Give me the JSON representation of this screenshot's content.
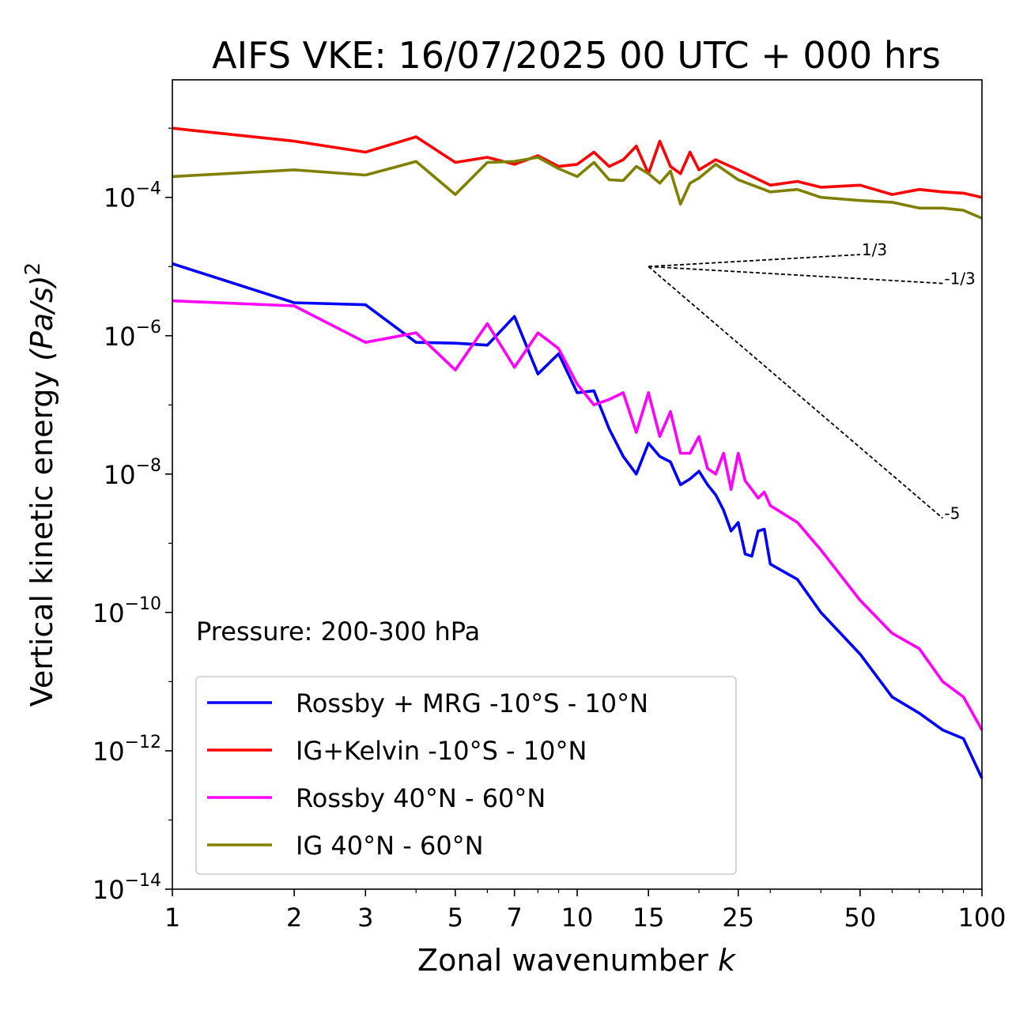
{
  "chart_data": {
    "type": "line",
    "title": "AIFS VKE: 16/07/2025 00 UTC + 000 hrs",
    "xlabel": "Zonal wavenumber",
    "xlabel_var": "k",
    "ylabel": "Vertical kinetic energy",
    "ylabel_unit": "(Pa/s)",
    "ylabel_exp": "2",
    "xscale": "log",
    "yscale": "log",
    "xlim": [
      1,
      100
    ],
    "ylim": [
      1e-14,
      0.005
    ],
    "xticks": [
      1,
      2,
      3,
      5,
      7,
      10,
      15,
      25,
      50,
      100
    ],
    "xtick_labels": [
      "1",
      "2",
      "3",
      "5",
      "7",
      "10",
      "15",
      "25",
      "50",
      "100"
    ],
    "yticks": [
      {
        "value": 0.0001,
        "base": "10",
        "exp": "−4"
      },
      {
        "value": 1e-06,
        "base": "10",
        "exp": "−6"
      },
      {
        "value": 1e-08,
        "base": "10",
        "exp": "−8"
      },
      {
        "value": 1e-10,
        "base": "10",
        "exp": "−10"
      },
      {
        "value": 1e-12,
        "base": "10",
        "exp": "−12"
      },
      {
        "value": 1e-14,
        "base": "10",
        "exp": "−14"
      }
    ],
    "annotation": "Pressure: 200-300 hPa",
    "legend_position": "lower-left",
    "grid": false,
    "reference_slopes": [
      {
        "label": "1/3",
        "x": [
          15,
          50
        ],
        "y": [
          1e-05,
          1.49e-05
        ]
      },
      {
        "label": "-1/3",
        "x": [
          15,
          80
        ],
        "y": [
          1e-05,
          5.7e-06
        ]
      },
      {
        "label": "-5",
        "x": [
          15,
          80
        ],
        "y": [
          1e-05,
          2.3e-09
        ]
      }
    ],
    "series": [
      {
        "name": "Rossby + MRG -10°S - 10°N",
        "color": "#0000ff",
        "x": [
          1,
          2,
          3,
          4,
          5,
          6,
          7,
          8,
          9,
          10,
          11,
          12,
          13,
          14,
          15,
          16,
          17,
          18,
          19,
          20,
          21,
          22,
          23,
          24,
          25,
          26,
          27,
          28,
          29,
          30,
          35,
          40,
          50,
          60,
          70,
          80,
          90,
          100
        ],
        "y": [
          1.1e-05,
          3e-06,
          2.8e-06,
          8e-07,
          7.8e-07,
          7.3e-07,
          1.9e-06,
          2.8e-07,
          5.5e-07,
          1.5e-07,
          1.6e-07,
          4.5e-08,
          1.8e-08,
          1e-08,
          2.8e-08,
          1.8e-08,
          1.5e-08,
          7e-09,
          8.5e-09,
          1.1e-08,
          7e-09,
          5e-09,
          3e-09,
          1.5e-09,
          2e-09,
          7e-10,
          6.5e-10,
          1.5e-09,
          1.6e-09,
          5e-10,
          3e-10,
          1e-10,
          2.5e-11,
          6e-12,
          3.5e-12,
          2e-12,
          1.5e-12,
          4e-13
        ]
      },
      {
        "name": "IG+Kelvin -10°S - 10°N",
        "color": "#ff0000",
        "x": [
          1,
          2,
          3,
          4,
          5,
          6,
          7,
          8,
          9,
          10,
          11,
          12,
          13,
          14,
          15,
          16,
          17,
          18,
          19,
          20,
          22,
          25,
          30,
          35,
          40,
          50,
          60,
          70,
          80,
          90,
          100
        ],
        "y": [
          0.001,
          0.00065,
          0.00045,
          0.00075,
          0.00032,
          0.00038,
          0.0003,
          0.0004,
          0.00028,
          0.0003,
          0.00045,
          0.00028,
          0.00035,
          0.00055,
          0.00022,
          0.00065,
          0.00028,
          0.00022,
          0.00045,
          0.00025,
          0.00035,
          0.00025,
          0.00015,
          0.00017,
          0.00014,
          0.00015,
          0.00011,
          0.00013,
          0.00012,
          0.000115,
          0.0001
        ]
      },
      {
        "name": "Rossby 40°N - 60°N",
        "color": "#ff00ff",
        "x": [
          1,
          2,
          3,
          4,
          5,
          6,
          7,
          8,
          9,
          10,
          11,
          12,
          13,
          14,
          15,
          16,
          17,
          18,
          19,
          20,
          21,
          22,
          23,
          24,
          25,
          26,
          27,
          28,
          29,
          30,
          35,
          40,
          50,
          60,
          70,
          80,
          90,
          100
        ],
        "y": [
          3.2e-06,
          2.7e-06,
          8e-07,
          1.1e-06,
          3.2e-07,
          1.5e-06,
          3.5e-07,
          1.1e-06,
          6.5e-07,
          2e-07,
          1e-07,
          1.2e-07,
          1.5e-07,
          4e-08,
          1.5e-07,
          3.5e-08,
          8e-08,
          2e-08,
          2e-08,
          3.5e-08,
          1.2e-08,
          1e-08,
          2e-08,
          6e-09,
          2e-08,
          8e-09,
          6e-09,
          4.5e-09,
          5.5e-09,
          3.5e-09,
          2e-09,
          8e-10,
          1.5e-10,
          5e-11,
          3e-11,
          1e-11,
          6e-12,
          2e-12
        ]
      },
      {
        "name": "IG 40°N - 60°N",
        "color": "#808000",
        "x": [
          1,
          2,
          3,
          4,
          5,
          6,
          7,
          8,
          9,
          10,
          11,
          12,
          13,
          14,
          15,
          16,
          17,
          18,
          19,
          20,
          22,
          25,
          30,
          35,
          40,
          50,
          60,
          70,
          80,
          90,
          100
        ],
        "y": [
          0.0002,
          0.00025,
          0.00021,
          0.00033,
          0.00011,
          0.00032,
          0.00033,
          0.00038,
          0.00026,
          0.0002,
          0.00032,
          0.00018,
          0.000175,
          0.00028,
          0.00022,
          0.00016,
          0.00024,
          8e-05,
          0.00016,
          0.00019,
          0.0003,
          0.00018,
          0.00012,
          0.00013,
          0.0001,
          9e-05,
          8.5e-05,
          7e-05,
          7e-05,
          6.5e-05,
          5e-05
        ]
      }
    ]
  }
}
